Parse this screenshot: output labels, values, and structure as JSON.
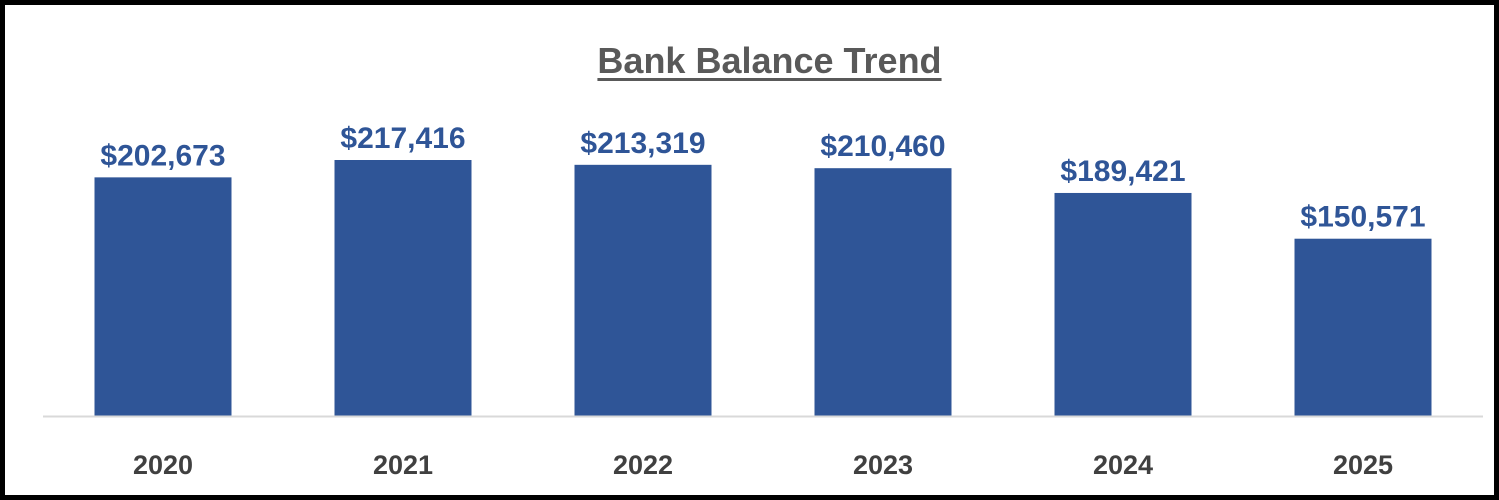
{
  "chart_data": {
    "type": "bar",
    "title": "Bank Balance Trend",
    "xlabel": "",
    "ylabel": "",
    "categories": [
      "2020",
      "2021",
      "2022",
      "2023",
      "2024",
      "2025"
    ],
    "values": [
      202673,
      217416,
      213319,
      210460,
      189421,
      150571
    ],
    "data_labels": [
      "$202,673",
      "$217,416",
      "$213,319",
      "$210,460",
      "$189,421",
      "$150,571"
    ],
    "ylim": [
      0,
      217416
    ],
    "grid": false,
    "legend": "none",
    "bar_color": "#2F5597",
    "label_color": "#2F5597",
    "tick_color": "#404040",
    "axis_color": "#D9D9D9",
    "title_color": "#595959"
  }
}
